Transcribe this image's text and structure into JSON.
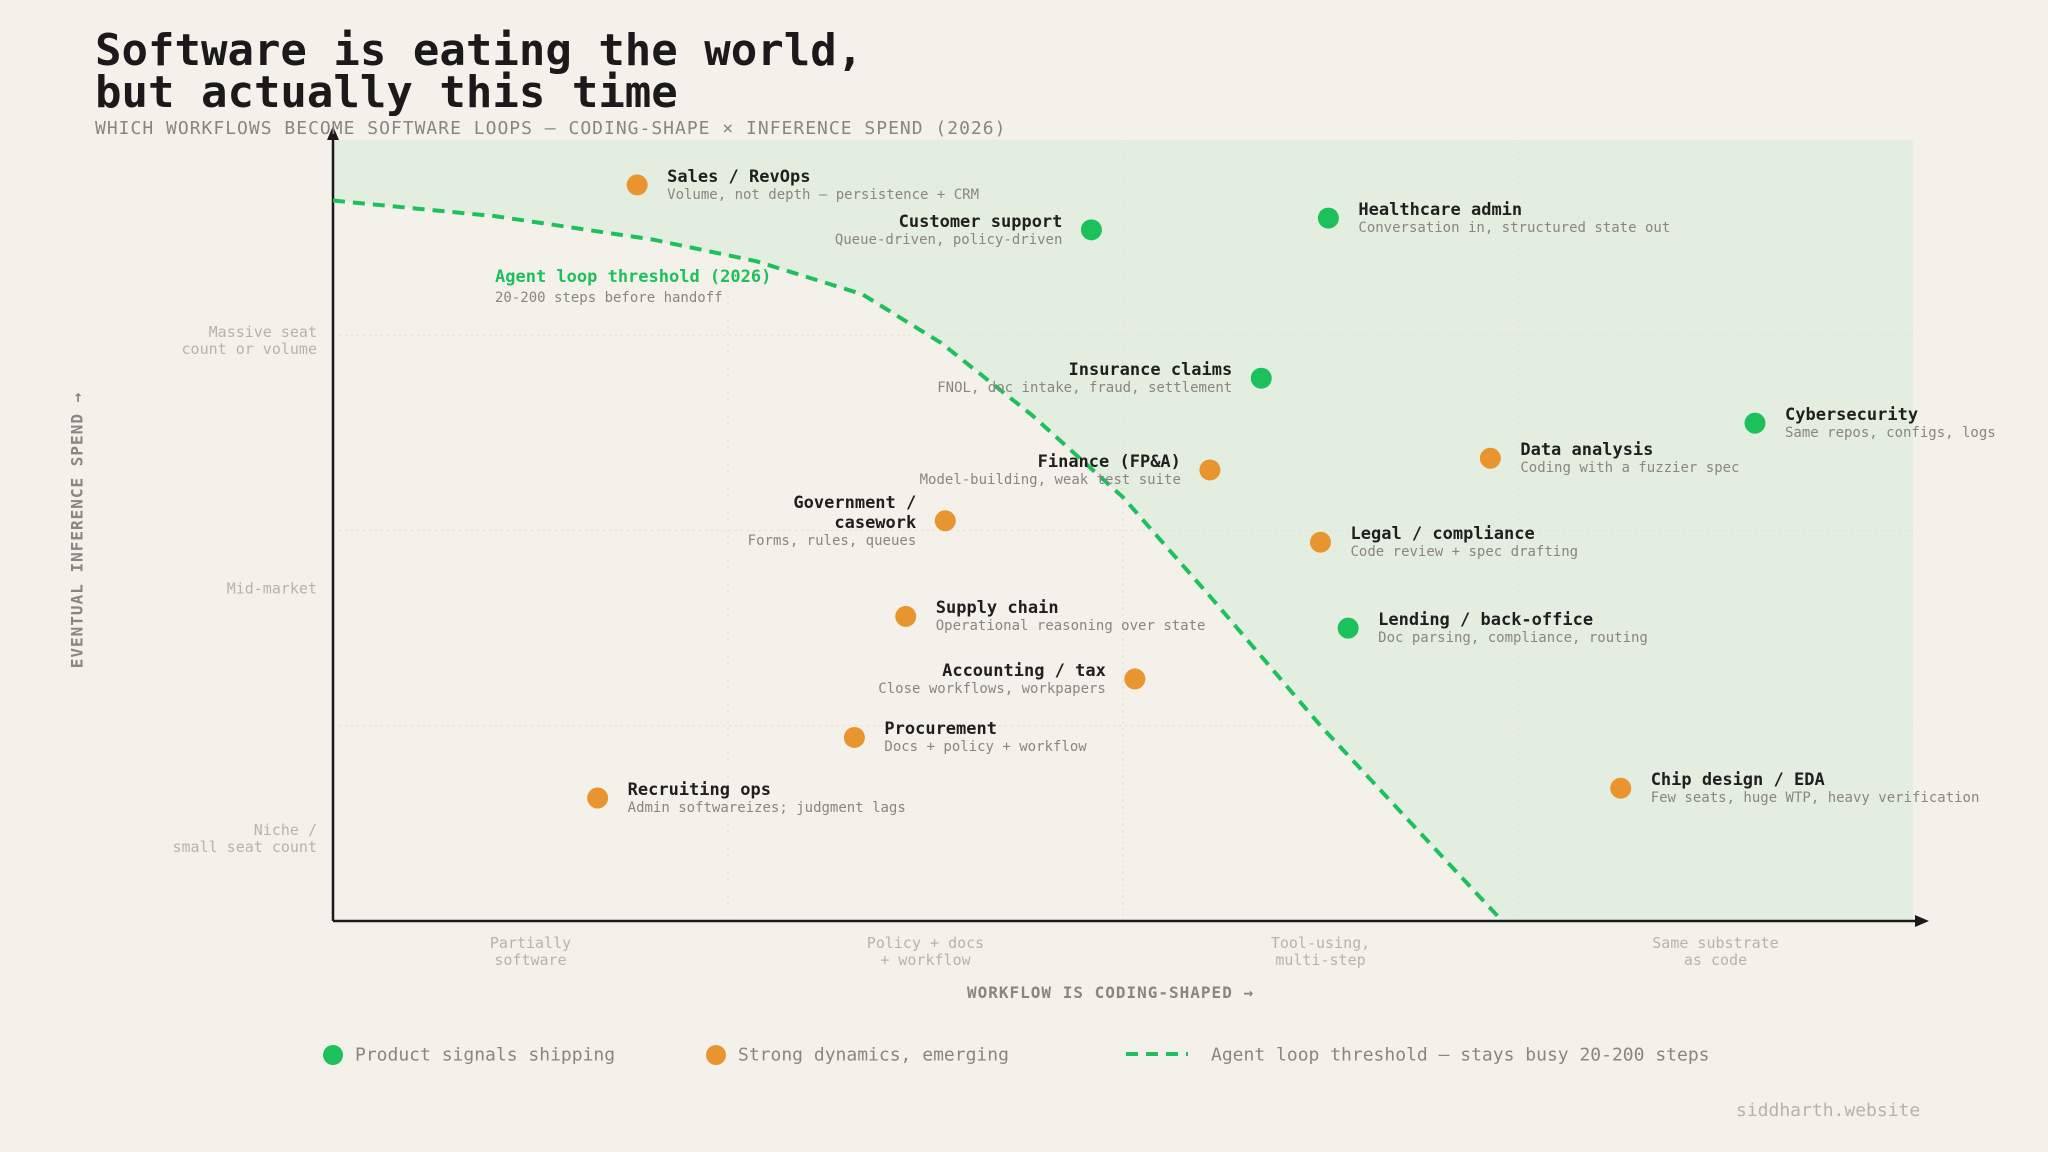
{
  "chart_data": {
    "type": "scatter",
    "title": "Software is eating the world,\nbut actually this time",
    "subtitle": "WHICH WORKFLOWS BECOME SOFTWARE LOOPS — CODING-SHAPE × INFERENCE SPEND (2026)",
    "x_label": "WORKFLOW IS CODING-SHAPED →",
    "y_label": "EVENTUAL INFERENCE SPEND →",
    "footer": "siddharth.website",
    "xlim": [
      0,
      4
    ],
    "ylim": [
      0,
      4
    ],
    "xticks": [
      {
        "value": 0.5,
        "label": "Partially\nsoftware"
      },
      {
        "value": 1.5,
        "label": "Policy + docs\n+ workflow"
      },
      {
        "value": 2.5,
        "label": "Tool-using,\nmulti-step"
      },
      {
        "value": 3.5,
        "label": "Same substrate\nas code"
      }
    ],
    "yticks": [
      {
        "value": 2.97,
        "label": "Massive seat\ncount or volume"
      },
      {
        "value": 1.7,
        "label": "Mid-market"
      },
      {
        "value": 0.42,
        "label": "Niche /\nsmall seat count"
      }
    ],
    "xgrid": [
      1,
      2,
      3
    ],
    "ygrid": [
      1,
      2,
      3
    ],
    "series": [
      {
        "name": "Product signals shipping",
        "color": "#1cc15b",
        "labels": [
          "Customer support",
          "Healthcare admin",
          "Insurance claims",
          "Cybersecurity",
          "Lending / back-office"
        ],
        "notes": [
          "Queue-driven, policy-driven",
          "Conversation in, structured state out",
          "FNOL, doc intake, fraud, settlement",
          "Same repos, configs, logs",
          "Doc parsing, compliance, routing"
        ],
        "x": [
          1.92,
          2.52,
          2.35,
          3.6,
          2.57
        ],
        "y": [
          3.54,
          3.6,
          2.78,
          2.55,
          1.5
        ]
      },
      {
        "name": "Strong dynamics, emerging",
        "color": "#e8952f",
        "labels": [
          "Sales / RevOps",
          "Data analysis",
          "Finance (FP&A)",
          "Government /\ncasework",
          "Legal / compliance",
          "Supply chain",
          "Accounting / tax",
          "Procurement",
          "Recruiting ops",
          "Chip design / EDA"
        ],
        "notes": [
          "Volume, not depth — persistence + CRM",
          "Coding with a fuzzier spec",
          "Model-building, weak test suite",
          "Forms, rules, queues",
          "Code review + spec drafting",
          "Operational reasoning over state",
          "Close workflows, workpapers",
          "Docs + policy + workflow",
          "Admin softwareizes; judgment lags",
          "Few seats, huge WTP, heavy verification"
        ],
        "x": [
          0.77,
          2.93,
          2.22,
          1.55,
          2.5,
          1.45,
          2.03,
          1.32,
          0.67,
          3.26
        ],
        "y": [
          3.77,
          2.37,
          2.31,
          2.05,
          1.94,
          1.56,
          1.24,
          0.94,
          0.63,
          0.68
        ]
      }
    ],
    "threshold": {
      "name": "Agent loop threshold (2026)",
      "note": "20-200 steps before handoff",
      "legend": "Agent loop threshold — stays busy 20-200 steps",
      "color": "#1cc15b",
      "x": [
        0,
        0.41,
        0.81,
        1.07,
        1.34,
        1.54,
        1.77,
        2.0,
        2.23,
        2.5,
        2.73,
        2.96
      ],
      "y": [
        3.69,
        3.61,
        3.49,
        3.38,
        3.21,
        2.96,
        2.59,
        2.17,
        1.64,
        1.0,
        0.5,
        0
      ]
    }
  }
}
